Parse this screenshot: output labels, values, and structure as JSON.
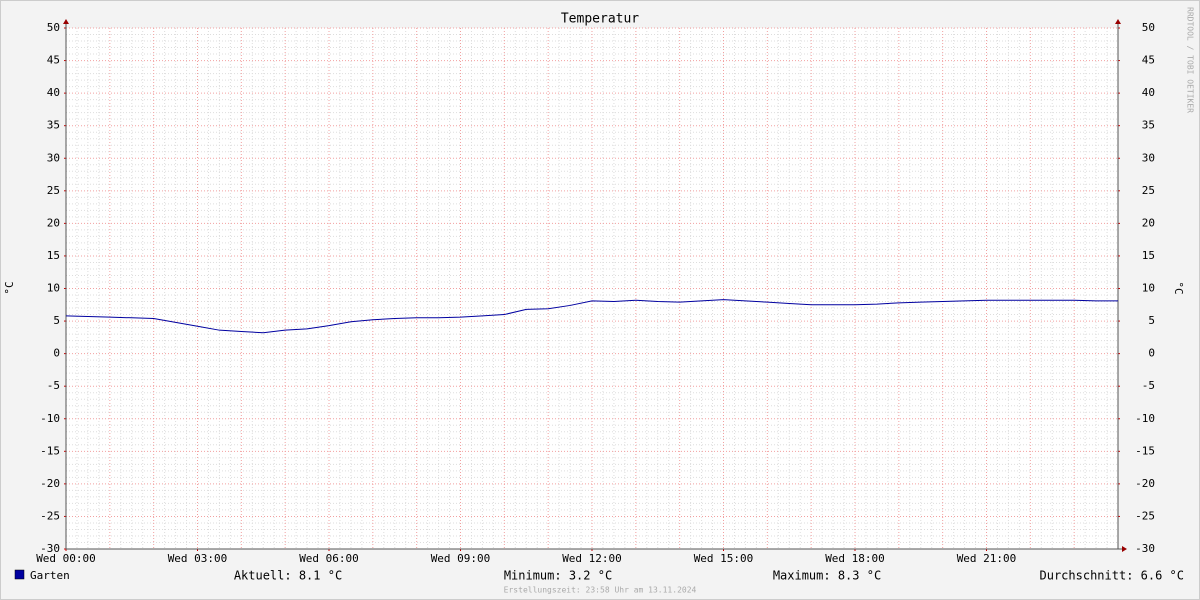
{
  "chart_data": {
    "type": "line",
    "title": "Temperatur",
    "y_label": "°C",
    "watermark": "RRDTOOL / TOBI OETIKER",
    "footer": "Erstellungszeit: 23:58 Uhr am 13.11.2024",
    "stats": [
      "Aktuell: 8.1 °C",
      "Minimum: 3.2 °C",
      "Maximum: 8.3 °C",
      "Durchschnitt: 6.6 °C"
    ],
    "x": [
      0,
      0.5,
      1,
      1.5,
      2,
      2.5,
      3,
      3.5,
      4,
      4.5,
      5,
      5.5,
      6,
      6.5,
      7,
      7.5,
      8,
      8.5,
      9,
      9.5,
      10,
      10.5,
      11,
      11.5,
      12,
      12.5,
      13,
      13.5,
      14,
      14.5,
      15,
      15.5,
      16,
      16.5,
      17,
      17.5,
      18,
      18.5,
      19,
      19.5,
      20,
      20.5,
      21,
      21.5,
      22,
      22.5,
      23,
      23.5,
      24
    ],
    "series": [
      {
        "name": "Garten",
        "color": "#0000a0",
        "values": [
          5.8,
          5.7,
          5.6,
          5.5,
          5.4,
          4.8,
          4.2,
          3.6,
          3.4,
          3.2,
          3.6,
          3.8,
          4.3,
          4.9,
          5.2,
          5.4,
          5.5,
          5.5,
          5.6,
          5.8,
          6.0,
          6.8,
          6.9,
          7.4,
          8.1,
          8.0,
          8.2,
          8.0,
          7.9,
          8.1,
          8.3,
          8.1,
          7.9,
          7.7,
          7.5,
          7.5,
          7.5,
          7.6,
          7.8,
          7.9,
          8.0,
          8.1,
          8.2,
          8.2,
          8.2,
          8.2,
          8.2,
          8.1,
          8.1
        ]
      }
    ],
    "xlim": [
      0,
      24
    ],
    "xticks": [
      {
        "value": 0,
        "label": "Wed 00:00"
      },
      {
        "value": 3,
        "label": "Wed 03:00"
      },
      {
        "value": 6,
        "label": "Wed 06:00"
      },
      {
        "value": 9,
        "label": "Wed 09:00"
      },
      {
        "value": 12,
        "label": "Wed 12:00"
      },
      {
        "value": 15,
        "label": "Wed 15:00"
      },
      {
        "value": 18,
        "label": "Wed 18:00"
      },
      {
        "value": 21,
        "label": "Wed 21:00"
      }
    ],
    "ylim": [
      -30,
      50
    ],
    "yticks": [
      -30,
      -25,
      -20,
      -15,
      -10,
      -5,
      0,
      5,
      10,
      15,
      20,
      25,
      30,
      35,
      40,
      45,
      50
    ],
    "grid": true
  }
}
